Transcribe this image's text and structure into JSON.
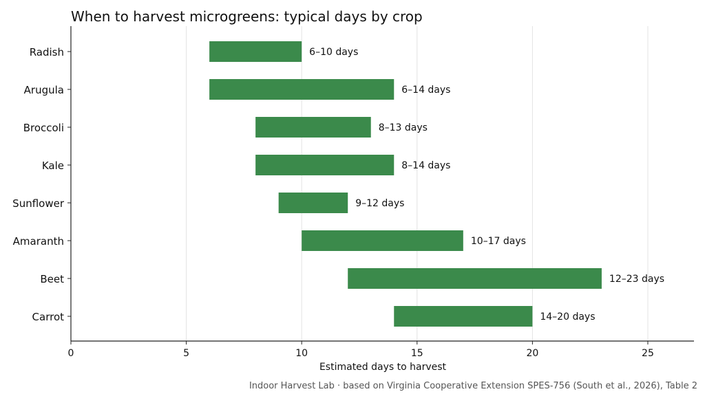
{
  "chart_data": {
    "type": "bar",
    "orientation": "horizontal-range",
    "title": "When to harvest microgreens: typical days by crop",
    "xlabel": "Estimated days to harvest",
    "ylabel": "",
    "xlim": [
      0,
      27
    ],
    "xticks": [
      0,
      5,
      10,
      15,
      20,
      25
    ],
    "grid": "vertical",
    "categories": [
      "Radish",
      "Arugula",
      "Broccoli",
      "Kale",
      "Sunflower",
      "Amaranth",
      "Beet",
      "Carrot"
    ],
    "ranges": [
      {
        "start": 6,
        "end": 10
      },
      {
        "start": 6,
        "end": 14
      },
      {
        "start": 8,
        "end": 13
      },
      {
        "start": 8,
        "end": 14
      },
      {
        "start": 9,
        "end": 12
      },
      {
        "start": 10,
        "end": 17
      },
      {
        "start": 12,
        "end": 23
      },
      {
        "start": 14,
        "end": 20
      }
    ],
    "data_labels": [
      "6–10 days",
      "6–14 days",
      "8–13 days",
      "8–14 days",
      "9–12 days",
      "10–17 days",
      "12–23 days",
      "14–20 days"
    ],
    "bar_color": "#3b8a4b",
    "source": "Indoor Harvest Lab · based on Virginia Cooperative Extension SPES-756 (South et al., 2026), Table 2"
  }
}
